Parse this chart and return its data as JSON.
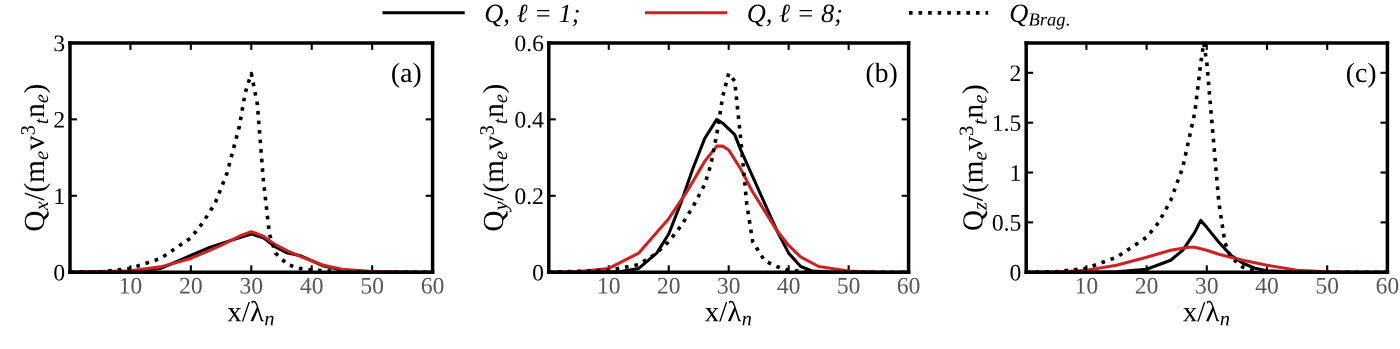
{
  "chart_data": [
    {
      "type": "line",
      "xlabel": "x/λ$_{n}$",
      "ylabel": "Q$_{x}$/(m$_{e}$v$^{3}$$_{t}$n$_{e}$)",
      "annotations": [
        "(a)"
      ],
      "xlim": [
        0,
        60
      ],
      "xticks": [
        10,
        20,
        30,
        40,
        50,
        60
      ],
      "ylim": [
        0,
        3
      ],
      "yticks": [
        0,
        1,
        2,
        3
      ],
      "grid": false,
      "legend": false,
      "series": [
        {
          "color": "#000000",
          "line_style": "solid",
          "x": [
            0,
            10,
            15,
            18,
            20,
            23,
            26,
            28,
            30,
            32,
            34,
            36,
            38,
            40,
            42,
            45,
            50,
            60
          ],
          "values": [
            0,
            0.01,
            0.05,
            0.15,
            0.22,
            0.32,
            0.4,
            0.45,
            0.5,
            0.45,
            0.33,
            0.25,
            0.22,
            0.15,
            0.08,
            0.03,
            0.005,
            0
          ]
        },
        {
          "color": "#cc2222",
          "line_style": "solid",
          "x": [
            0,
            10,
            15,
            20,
            25,
            28,
            30,
            32,
            34,
            36,
            38,
            40,
            42,
            45,
            50,
            55,
            60
          ],
          "values": [
            0,
            0.02,
            0.07,
            0.18,
            0.35,
            0.47,
            0.53,
            0.47,
            0.36,
            0.28,
            0.21,
            0.15,
            0.09,
            0.04,
            0.01,
            0,
            0
          ]
        },
        {
          "color": "#000000",
          "line_style": "dotted",
          "x": [
            0,
            5,
            10,
            15,
            20,
            22,
            24,
            26,
            28,
            29,
            30,
            31,
            32,
            33,
            34,
            36,
            38,
            40,
            45,
            50,
            60
          ],
          "values": [
            0,
            0.005,
            0.05,
            0.18,
            0.45,
            0.65,
            0.9,
            1.3,
            1.9,
            2.35,
            2.6,
            2.2,
            1.2,
            0.5,
            0.25,
            0.1,
            0.05,
            0.03,
            0.005,
            0,
            0
          ]
        }
      ]
    },
    {
      "type": "line",
      "xlabel": "x/λ$_{n}$",
      "ylabel": "Q$_{y}$/(m$_{e}$v$^{3}$$_{t}$n$_{e}$)",
      "annotations": [
        "(b)"
      ],
      "xlim": [
        0,
        60
      ],
      "xticks": [
        10,
        20,
        30,
        40,
        50,
        60
      ],
      "ylim": [
        0,
        0.6
      ],
      "yticks": [
        0,
        0.2,
        0.4,
        0.6
      ],
      "grid": false,
      "legend": "top",
      "series": [
        {
          "name": "Q, ℓ = 1;",
          "color": "#000000",
          "line_style": "solid",
          "x": [
            0,
            12,
            15,
            18,
            20,
            22,
            24,
            26,
            28,
            29,
            30,
            31,
            32,
            34,
            36,
            38,
            40,
            42,
            44,
            48,
            60
          ],
          "values": [
            0,
            0.002,
            0.01,
            0.05,
            0.1,
            0.18,
            0.27,
            0.35,
            0.4,
            0.39,
            0.375,
            0.36,
            0.32,
            0.25,
            0.18,
            0.11,
            0.05,
            0.015,
            0.003,
            0,
            0
          ]
        },
        {
          "name": "Q, ℓ = 8;",
          "color": "#cc2222",
          "line_style": "solid",
          "x": [
            0,
            5,
            10,
            15,
            20,
            23,
            26,
            28,
            29,
            30,
            32,
            34,
            36,
            38,
            40,
            42,
            45,
            50,
            55,
            60
          ],
          "values": [
            0,
            0.002,
            0.01,
            0.05,
            0.14,
            0.21,
            0.29,
            0.33,
            0.33,
            0.32,
            0.27,
            0.21,
            0.16,
            0.11,
            0.07,
            0.04,
            0.015,
            0.003,
            0,
            0
          ]
        },
        {
          "name": "Q$_{Brag.}$",
          "color": "#000000",
          "line_style": "dotted",
          "x": [
            0,
            10,
            15,
            18,
            20,
            22,
            24,
            26,
            27,
            28,
            29,
            30,
            31,
            32,
            33,
            34,
            36,
            38,
            40,
            45,
            60
          ],
          "values": [
            0,
            0.005,
            0.02,
            0.05,
            0.08,
            0.12,
            0.17,
            0.23,
            0.28,
            0.36,
            0.46,
            0.52,
            0.5,
            0.35,
            0.18,
            0.08,
            0.03,
            0.015,
            0.005,
            0,
            0
          ]
        }
      ]
    },
    {
      "type": "line",
      "xlabel": "x/λ$_{n}$",
      "ylabel": "Q$_{z}$/(m$_{e}$v$^{3}$$_{t}$n$_{e}$)",
      "annotations": [
        "(c)"
      ],
      "xlim": [
        0,
        60
      ],
      "xticks": [
        10,
        20,
        30,
        40,
        50,
        60
      ],
      "ylim": [
        0,
        2.3
      ],
      "yticks": [
        0,
        0.5,
        1,
        1.5,
        2
      ],
      "grid": false,
      "legend": false,
      "series": [
        {
          "color": "#000000",
          "line_style": "solid",
          "x": [
            0,
            15,
            20,
            24,
            26,
            28,
            29,
            30,
            32,
            34,
            36,
            38,
            40,
            45,
            60
          ],
          "values": [
            0,
            0.005,
            0.03,
            0.12,
            0.22,
            0.4,
            0.52,
            0.45,
            0.3,
            0.17,
            0.09,
            0.04,
            0.015,
            0,
            0
          ]
        },
        {
          "color": "#cc2222",
          "line_style": "solid",
          "x": [
            0,
            5,
            10,
            15,
            20,
            24,
            27,
            28,
            30,
            32,
            34,
            36,
            40,
            45,
            50,
            55,
            60
          ],
          "values": [
            0,
            0.003,
            0.02,
            0.07,
            0.15,
            0.22,
            0.25,
            0.25,
            0.22,
            0.18,
            0.15,
            0.12,
            0.07,
            0.02,
            0.005,
            0,
            0
          ]
        },
        {
          "color": "#000000",
          "line_style": "dotted",
          "x": [
            0,
            5,
            10,
            15,
            20,
            22,
            24,
            26,
            28,
            29,
            29.5,
            30,
            31,
            32,
            33,
            34,
            36,
            38,
            40,
            45,
            60
          ],
          "values": [
            0,
            0.005,
            0.04,
            0.15,
            0.35,
            0.5,
            0.72,
            1.05,
            1.6,
            2.1,
            2.3,
            2.1,
            1.4,
            0.7,
            0.3,
            0.15,
            0.05,
            0.02,
            0.005,
            0,
            0
          ]
        }
      ]
    }
  ]
}
